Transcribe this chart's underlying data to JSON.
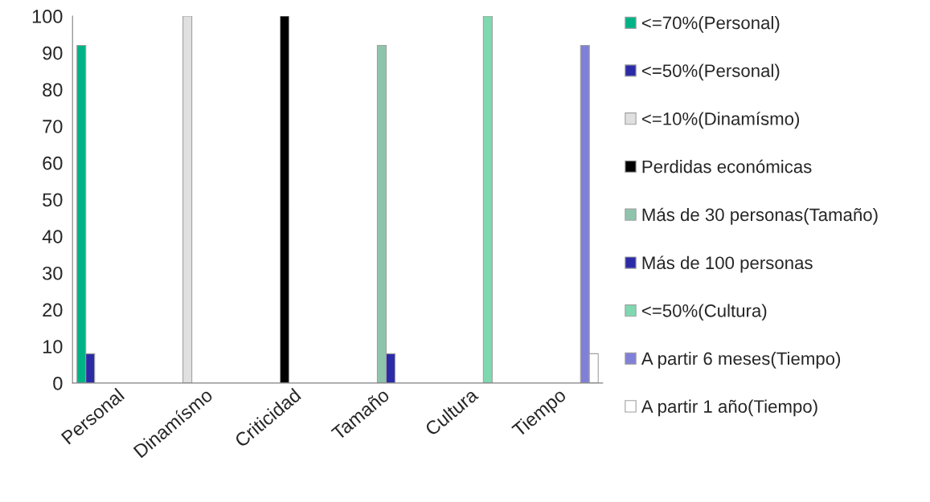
{
  "chart_data": {
    "type": "bar",
    "categories": [
      "Personal",
      "Dinamísmo",
      "Criticidad",
      "Tamaño",
      "Cultura",
      "Tiempo"
    ],
    "series": [
      {
        "name": "<=70%(Personal)",
        "color": "#00b386",
        "values": [
          92,
          null,
          null,
          null,
          null,
          null
        ]
      },
      {
        "name": "<=50%(Personal)",
        "color": "#2b2ba8",
        "values": [
          8,
          null,
          null,
          null,
          null,
          null
        ]
      },
      {
        "name": "<=10%(Dinamísmo)",
        "color": "#e0e0e0",
        "values": [
          null,
          100,
          null,
          null,
          null,
          null
        ]
      },
      {
        "name": "Perdidas económicas",
        "color": "#000000",
        "values": [
          null,
          null,
          100,
          null,
          null,
          null
        ]
      },
      {
        "name": "Más de 30 personas(Tamaño)",
        "color": "#8fc4ac",
        "values": [
          null,
          null,
          null,
          92,
          null,
          null
        ]
      },
      {
        "name": "Más de 100 personas",
        "color": "#2b2ba8",
        "values": [
          null,
          null,
          null,
          8,
          null,
          null
        ]
      },
      {
        "name": "<=50%(Cultura)",
        "color": "#80d8b0",
        "values": [
          null,
          null,
          null,
          null,
          100,
          null
        ]
      },
      {
        "name": "A partir 6 meses(Tiempo)",
        "color": "#8080d8",
        "values": [
          null,
          null,
          null,
          null,
          null,
          92
        ]
      },
      {
        "name": "A partir 1 año(Tiempo)",
        "color": "#ffffff",
        "values": [
          null,
          null,
          null,
          null,
          null,
          8
        ]
      }
    ],
    "ylim": [
      0,
      100
    ],
    "yticks": [
      0,
      10,
      20,
      30,
      40,
      50,
      60,
      70,
      80,
      90,
      100
    ],
    "grid": false,
    "legend": "right"
  }
}
